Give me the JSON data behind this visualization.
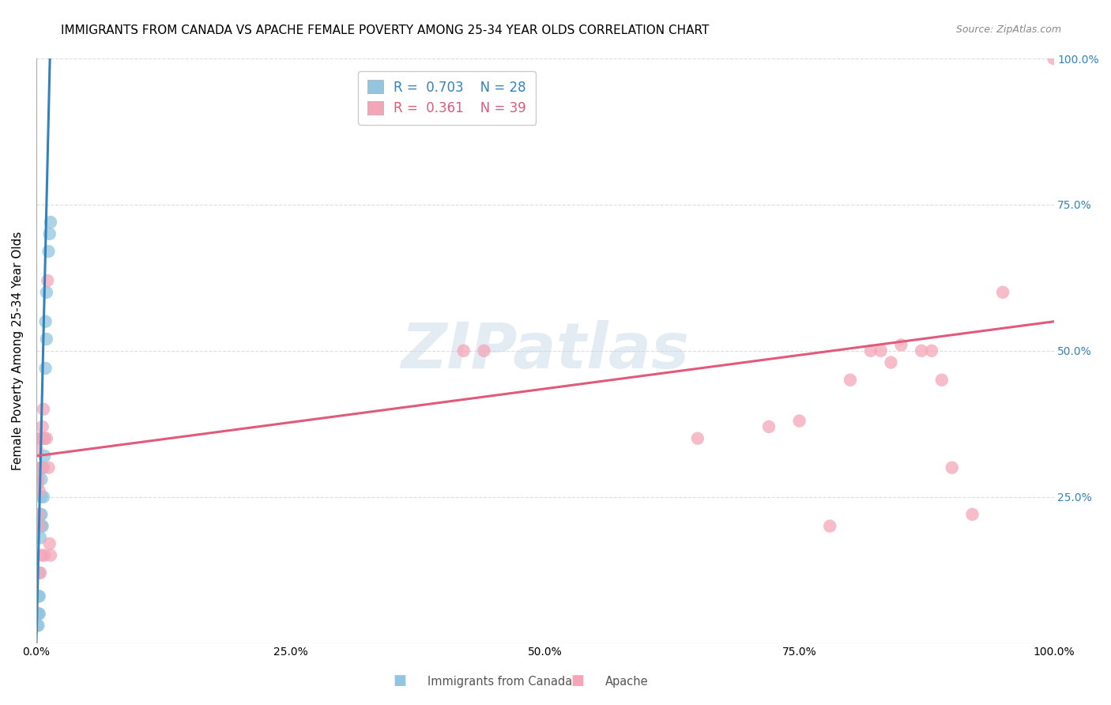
{
  "title": "IMMIGRANTS FROM CANADA VS APACHE FEMALE POVERTY AMONG 25-34 YEAR OLDS CORRELATION CHART",
  "source": "Source: ZipAtlas.com",
  "ylabel": "Female Poverty Among 25-34 Year Olds",
  "xlabel_blue": "Immigrants from Canada",
  "xlabel_pink": "Apache",
  "legend_blue_R": "0.703",
  "legend_blue_N": "28",
  "legend_pink_R": "0.361",
  "legend_pink_N": "39",
  "blue_color": "#92c5de",
  "blue_line_color": "#3182bd",
  "pink_color": "#f4a6b8",
  "pink_line_color": "#e05a7a",
  "blue_points_x": [
    0.001,
    0.001,
    0.002,
    0.002,
    0.002,
    0.003,
    0.003,
    0.003,
    0.004,
    0.004,
    0.004,
    0.005,
    0.005,
    0.005,
    0.005,
    0.006,
    0.006,
    0.007,
    0.007,
    0.008,
    0.008,
    0.009,
    0.009,
    0.01,
    0.01,
    0.012,
    0.013,
    0.014
  ],
  "blue_points_y": [
    0.03,
    0.05,
    0.03,
    0.05,
    0.08,
    0.05,
    0.08,
    0.12,
    0.18,
    0.2,
    0.22,
    0.2,
    0.22,
    0.25,
    0.28,
    0.2,
    0.3,
    0.25,
    0.3,
    0.32,
    0.35,
    0.47,
    0.55,
    0.52,
    0.6,
    0.67,
    0.7,
    0.72
  ],
  "pink_points_x": [
    0.0,
    0.0,
    0.001,
    0.001,
    0.002,
    0.002,
    0.003,
    0.003,
    0.004,
    0.005,
    0.005,
    0.006,
    0.006,
    0.007,
    0.007,
    0.008,
    0.01,
    0.011,
    0.012,
    0.013,
    0.014,
    0.42,
    0.44,
    0.65,
    0.72,
    0.75,
    0.78,
    0.8,
    0.82,
    0.83,
    0.84,
    0.85,
    0.87,
    0.88,
    0.89,
    0.9,
    0.92,
    0.95,
    1.0
  ],
  "pink_points_y": [
    0.3,
    0.35,
    0.27,
    0.33,
    0.22,
    0.28,
    0.2,
    0.26,
    0.12,
    0.15,
    0.35,
    0.3,
    0.37,
    0.35,
    0.4,
    0.15,
    0.35,
    0.62,
    0.3,
    0.17,
    0.15,
    0.5,
    0.5,
    0.35,
    0.37,
    0.38,
    0.2,
    0.45,
    0.5,
    0.5,
    0.48,
    0.51,
    0.5,
    0.5,
    0.45,
    0.3,
    0.22,
    0.6,
    1.0
  ],
  "blue_line_x": [
    0.0,
    0.014
  ],
  "blue_line_y": [
    0.0,
    1.05
  ],
  "pink_line_x": [
    0.0,
    1.0
  ],
  "pink_line_y": [
    0.32,
    0.55
  ],
  "xlim": [
    0.0,
    1.0
  ],
  "ylim": [
    0.0,
    1.0
  ],
  "yticks": [
    0.0,
    0.25,
    0.5,
    0.75,
    1.0
  ],
  "ytick_labels_right": [
    "",
    "25.0%",
    "50.0%",
    "75.0%",
    "100.0%"
  ],
  "xticks": [
    0.0,
    0.25,
    0.5,
    0.75,
    1.0
  ],
  "xtick_labels": [
    "0.0%",
    "25.0%",
    "50.0%",
    "75.0%",
    "100.0%"
  ],
  "background_color": "#ffffff",
  "grid_color": "#dddddd",
  "title_fontsize": 11,
  "axis_label_fontsize": 11,
  "tick_label_fontsize": 10,
  "legend_fontsize": 12,
  "watermark_text": "ZIPatlas",
  "watermark_color": "#c8d8e8",
  "watermark_alpha": 0.5
}
